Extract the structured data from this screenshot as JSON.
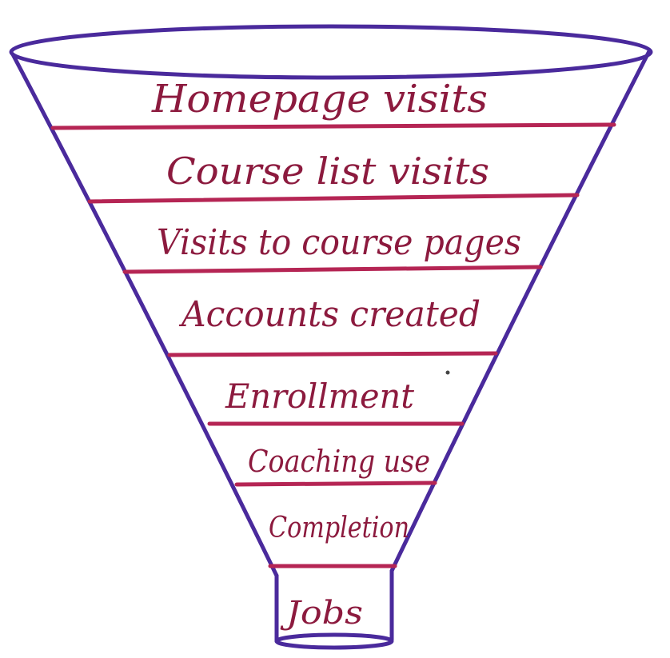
{
  "colors": {
    "outline": "#4a2a9c",
    "dividers": "#b52554",
    "text": "#8c1a3e",
    "background": "#ffffff"
  },
  "stages": [
    {
      "label": "Homepage visits"
    },
    {
      "label": "Course list visits"
    },
    {
      "label": "Visits to course pages"
    },
    {
      "label": "Accounts created"
    },
    {
      "label": "Enrollment"
    },
    {
      "label": "Coaching use"
    },
    {
      "label": "Completion"
    },
    {
      "label": "Jobs"
    }
  ]
}
